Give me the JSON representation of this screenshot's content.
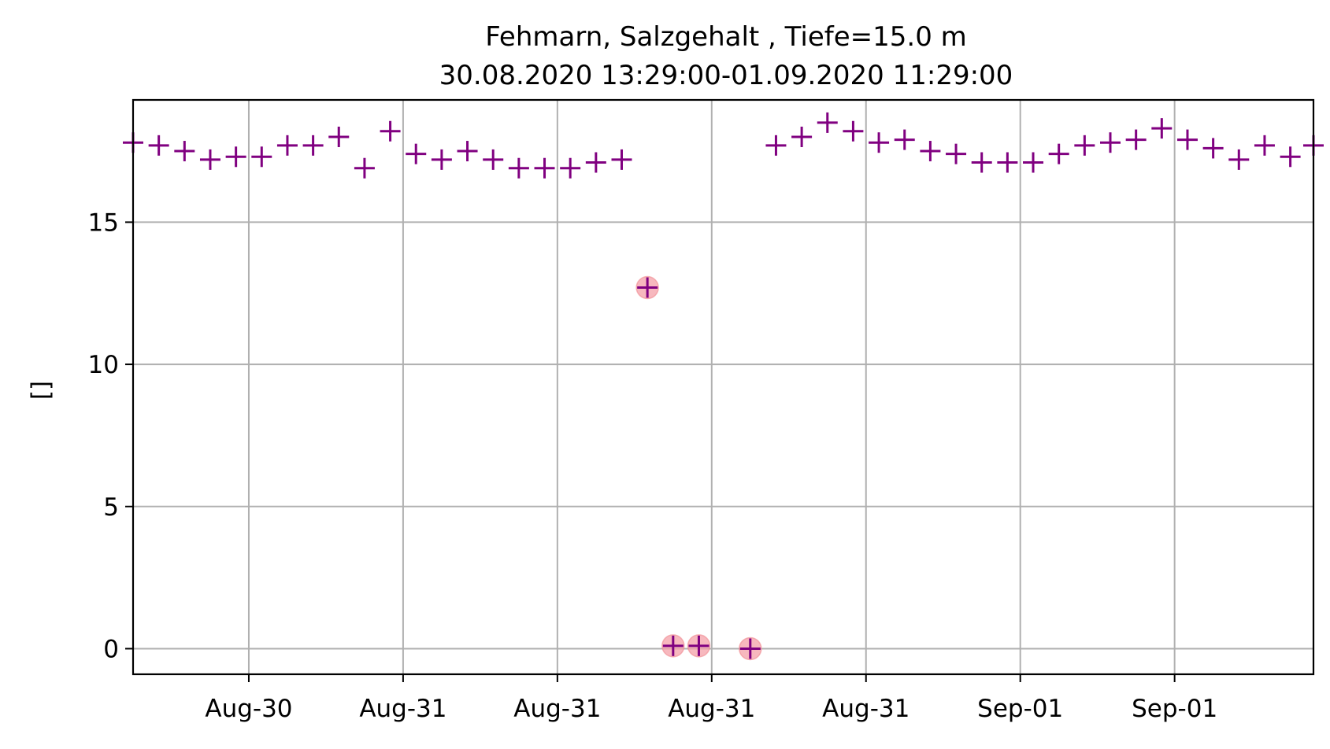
{
  "chart_data": {
    "type": "scatter",
    "title": "Fehmarn, Salzgehalt , Tiefe=15.0 m",
    "subtitle": "30.08.2020 13:29:00-01.09.2020 11:29:00",
    "xlabel": "",
    "ylabel": "[]",
    "ylim": [
      -0.9,
      19.3
    ],
    "xlim_hours": [
      -4.5,
      41.4
    ],
    "yticks": [
      0,
      5,
      10,
      15
    ],
    "xticks": [
      {
        "label": "Aug-30",
        "hour": 0
      },
      {
        "label": "Aug-31",
        "hour": 6
      },
      {
        "label": "Aug-31",
        "hour": 12
      },
      {
        "label": "Aug-31",
        "hour": 18
      },
      {
        "label": "Aug-31",
        "hour": 24
      },
      {
        "label": "Sep-01",
        "hour": 30
      },
      {
        "label": "Sep-01",
        "hour": 36
      }
    ],
    "grid": true,
    "marker_color": "#800080",
    "flag_color": "#f4a0a8",
    "series": [
      {
        "hours": [
          -4.5,
          -3.5,
          -2.5,
          -1.5,
          -0.5,
          0.5,
          1.5,
          2.5,
          3.5,
          4.5,
          5.5,
          6.5,
          7.5,
          8.5,
          9.5,
          10.5,
          11.5,
          12.5,
          13.5,
          14.5,
          15.5,
          16.5,
          17.5,
          18.5,
          19.5,
          20.5,
          21.5,
          22.5,
          23.5,
          24.5,
          25.5,
          26.5,
          27.5,
          28.5,
          29.5,
          30.5,
          31.5,
          32.5,
          33.5,
          34.5,
          35.5,
          36.5,
          37.5,
          38.5,
          39.5,
          40.5,
          41.4
        ],
        "values": [
          17.8,
          17.7,
          17.5,
          17.2,
          17.3,
          17.3,
          17.7,
          17.7,
          18.0,
          16.9,
          18.2,
          17.4,
          17.2,
          17.5,
          17.2,
          16.9,
          16.9,
          16.9,
          17.1,
          17.2,
          12.7,
          0.1,
          0.1,
          null,
          0.0,
          17.7,
          18.0,
          18.5,
          18.2,
          17.8,
          17.9,
          17.5,
          17.4,
          17.1,
          17.1,
          17.1,
          17.4,
          17.7,
          17.8,
          17.9,
          18.3,
          17.9,
          17.6,
          17.2,
          17.7,
          17.3,
          17.7
        ],
        "flagged": [
          12.7,
          0.1,
          0.1,
          0.0
        ],
        "flagged_hours": [
          15.5,
          16.5,
          17.5,
          19.5
        ]
      }
    ]
  }
}
